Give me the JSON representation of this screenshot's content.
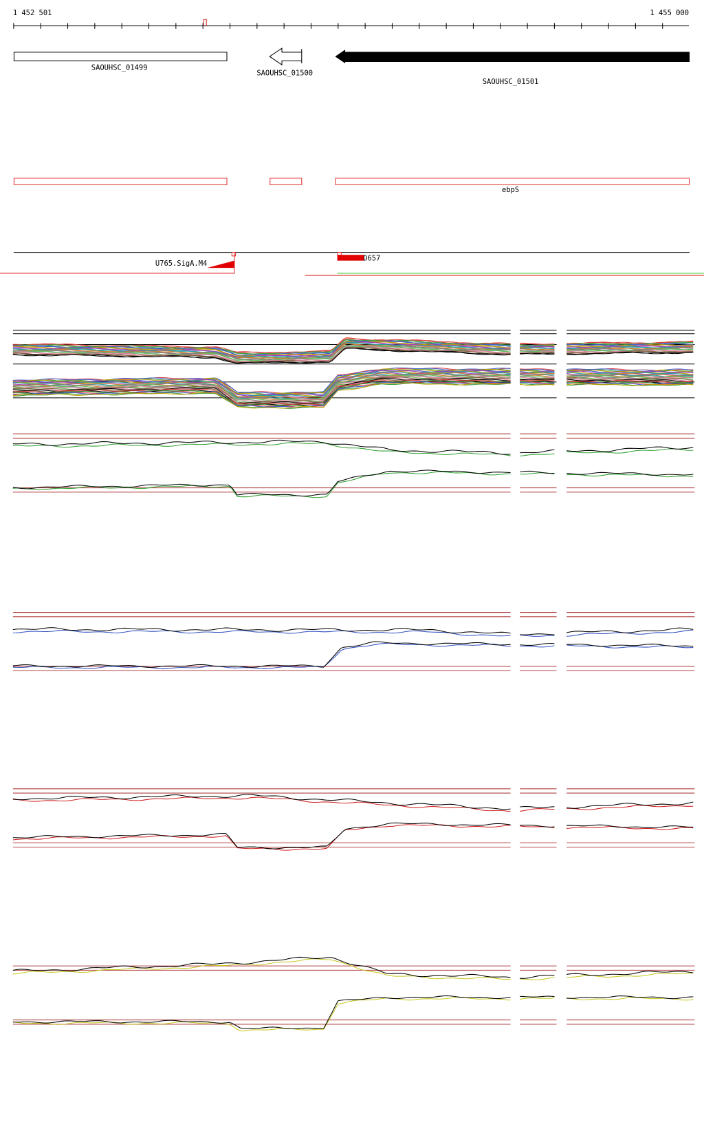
{
  "ruler": {
    "start": "1 452 501",
    "end": "1 455 000"
  },
  "genes": [
    {
      "label": "SAOUHSC_01499"
    },
    {
      "label": "SAOUHSC_01500"
    },
    {
      "label": "SAOUHSC_01501"
    }
  ],
  "annotation": {
    "label": "ebpS"
  },
  "promoters": [
    {
      "label": "U765.SigA.M4"
    },
    {
      "label": "D657"
    }
  ]
}
